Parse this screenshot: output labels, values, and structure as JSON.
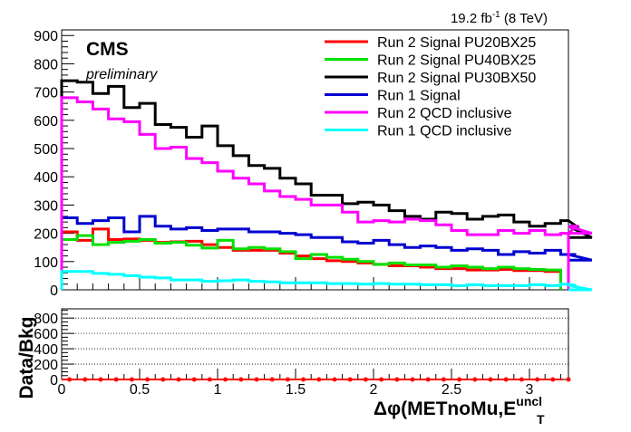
{
  "header": {
    "lumi_value": "19.2 fb",
    "lumi_exp": "-1",
    "lumi_energy": " (8 TeV)"
  },
  "labels": {
    "experiment": "CMS",
    "status": "preliminary",
    "ratio_ylabel": "Data/Bkg",
    "xlabel_main": "Δφ(METnoMu,E",
    "xlabel_sup": "uncl",
    "xlabel_sub": "T"
  },
  "chart_data": [
    {
      "type": "line",
      "style": "step-histogram",
      "xlim": [
        0,
        3.25
      ],
      "ylim": [
        0,
        920
      ],
      "bin_width": 0.1,
      "x_ticks": [
        "0",
        "0.5",
        "1",
        "1.5",
        "2",
        "2.5",
        "3"
      ],
      "y_ticks": [
        "0",
        "100",
        "200",
        "300",
        "400",
        "500",
        "600",
        "700",
        "800",
        "900"
      ],
      "legend_position": "top-right",
      "series": [
        {
          "name": "Run 2 Signal PU20BX25",
          "color": "#ff0000",
          "values": [
            205,
            175,
            215,
            178,
            180,
            175,
            168,
            170,
            172,
            160,
            150,
            140,
            140,
            140,
            130,
            120,
            110,
            103,
            100,
            95,
            90,
            85,
            85,
            80,
            75,
            75,
            70,
            70,
            72,
            68,
            68,
            65
          ]
        },
        {
          "name": "Run 2 Signal PU40BX25",
          "color": "#00e000",
          "values": [
            178,
            192,
            160,
            168,
            172,
            178,
            165,
            168,
            158,
            148,
            175,
            145,
            150,
            145,
            135,
            110,
            125,
            115,
            108,
            100,
            90,
            95,
            88,
            88,
            80,
            85,
            80,
            75,
            80,
            75,
            72,
            70
          ]
        },
        {
          "name": "Run 2 Signal PU30BX50",
          "color": "#000000",
          "values": [
            740,
            735,
            695,
            720,
            645,
            660,
            585,
            575,
            540,
            580,
            510,
            475,
            440,
            430,
            395,
            375,
            335,
            335,
            305,
            310,
            300,
            280,
            260,
            250,
            275,
            270,
            250,
            260,
            265,
            240,
            225,
            235,
            245,
            225,
            185
          ]
        },
        {
          "name": "Run 1 Signal",
          "color": "#0000d0",
          "values": [
            255,
            235,
            245,
            255,
            205,
            260,
            225,
            215,
            220,
            210,
            215,
            215,
            205,
            205,
            200,
            195,
            185,
            185,
            170,
            165,
            175,
            160,
            150,
            155,
            150,
            140,
            145,
            140,
            125,
            135,
            130,
            140,
            125,
            125,
            105
          ]
        },
        {
          "name": "Run 2 QCD inclusive",
          "color": "#ff00ff",
          "values": [
            680,
            665,
            640,
            605,
            595,
            550,
            500,
            505,
            465,
            450,
            420,
            395,
            375,
            350,
            330,
            320,
            300,
            300,
            275,
            240,
            245,
            240,
            250,
            245,
            230,
            210,
            195,
            195,
            210,
            200,
            210,
            195,
            200,
            225,
            200
          ]
        },
        {
          "name": "Run 1 QCD inclusive",
          "color": "#00ffff",
          "values": [
            65,
            65,
            58,
            55,
            50,
            45,
            42,
            35,
            35,
            30,
            32,
            35,
            30,
            28,
            25,
            25,
            25,
            22,
            22,
            20,
            22,
            20,
            20,
            18,
            18,
            15,
            18,
            15,
            15,
            15,
            18,
            15,
            20,
            15,
            0
          ]
        }
      ]
    },
    {
      "type": "line",
      "style": "ratio-panel",
      "xlim": [
        0,
        3.25
      ],
      "ylim": [
        0,
        920
      ],
      "y_ticks": [
        "0",
        "200",
        "400",
        "600",
        "800"
      ],
      "grid": true,
      "series": [
        {
          "name": "",
          "color": "#ff0000",
          "values": [
            0,
            0,
            0,
            0,
            0,
            0,
            0,
            0,
            0,
            0,
            0,
            0,
            0,
            0,
            0,
            0,
            0,
            0,
            0,
            0,
            0,
            0,
            0,
            0,
            0,
            0,
            0,
            0,
            0,
            0,
            0,
            0,
            0
          ]
        }
      ]
    }
  ]
}
